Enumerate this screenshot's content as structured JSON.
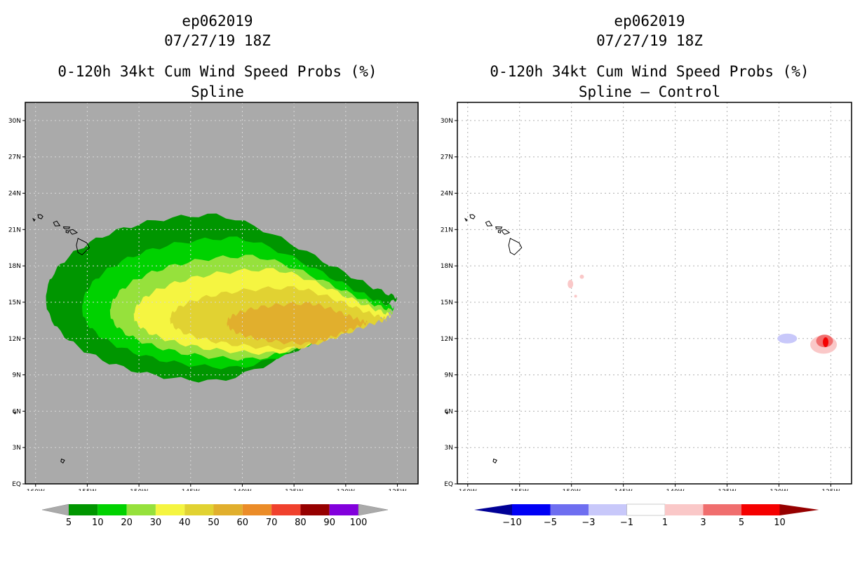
{
  "chart_data": [
    {
      "type": "heatmap",
      "storm_id": "ep062019",
      "date": "07/27/19 18Z",
      "title": "0-120h 34kt Cum Wind Speed Probs (%)",
      "subtitle": "Spline",
      "lon_range": [
        -161,
        -123
      ],
      "lat_range": [
        0,
        31.5
      ],
      "x_ticks": [
        "160W",
        "155W",
        "150W",
        "145W",
        "140W",
        "135W",
        "130W",
        "125W"
      ],
      "y_ticks": [
        "EQ",
        "3N",
        "6N",
        "9N",
        "12N",
        "15N",
        "18N",
        "21N",
        "24N",
        "27N",
        "30N"
      ],
      "colorbar": {
        "labels": [
          "5",
          "10",
          "20",
          "30",
          "40",
          "50",
          "60",
          "70",
          "80",
          "90",
          "100"
        ],
        "colors": [
          "#009600",
          "#00d200",
          "#96e13c",
          "#f5f541",
          "#e1d232",
          "#e1af2d",
          "#eb8c28",
          "#f0412d",
          "#960000",
          "#8200dc"
        ]
      },
      "contours": [
        {
          "level": "5",
          "color": "#009600",
          "center": [
            -142.5,
            15.3
          ],
          "west": -159,
          "east": -125,
          "north": 22.2,
          "south": 8.5
        },
        {
          "level": "10",
          "color": "#00d200",
          "center": [
            -140.5,
            14.5
          ],
          "west": -155.5,
          "east": -125.3,
          "north": 20.3,
          "south": 9.6
        },
        {
          "level": "20",
          "color": "#96e13c",
          "center": [
            -139,
            14.2
          ],
          "west": -152.8,
          "east": -125.4,
          "north": 18.8,
          "south": 10.3
        },
        {
          "level": "30",
          "color": "#f5f541",
          "center": [
            -137,
            13.9
          ],
          "west": -150.5,
          "east": -125.6,
          "north": 17.7,
          "south": 10.8
        },
        {
          "level": "40",
          "color": "#e1d232",
          "center": [
            -135,
            13.6
          ],
          "west": -147,
          "east": -126,
          "north": 16.2,
          "south": 11.2
        },
        {
          "level": "50",
          "color": "#e1af2d",
          "center": [
            -133.5,
            13.3
          ],
          "west": -141.5,
          "east": -127.8,
          "north": 14.9,
          "south": 11.6
        }
      ]
    },
    {
      "type": "heatmap",
      "storm_id": "ep062019",
      "date": "07/27/19 18Z",
      "title": "0-120h 34kt Cum Wind Speed Probs (%)",
      "subtitle": "Spline – Control",
      "lon_range": [
        -161,
        -123
      ],
      "lat_range": [
        0,
        31.5
      ],
      "x_ticks": [
        "160W",
        "155W",
        "150W",
        "145W",
        "140W",
        "135W",
        "130W",
        "125W"
      ],
      "y_ticks": [
        "EQ",
        "3N",
        "6N",
        "9N",
        "12N",
        "15N",
        "18N",
        "21N",
        "24N",
        "27N",
        "30N"
      ],
      "colorbar": {
        "labels": [
          "−10",
          "−5",
          "−3",
          "−1",
          "1",
          "3",
          "5",
          "10"
        ],
        "colors": [
          "#000096",
          "#0000f5",
          "#6e6ef0",
          "#c8c8fa",
          "#ffffff",
          "#fac8c8",
          "#f06e6e",
          "#f50000",
          "#960000"
        ]
      },
      "blobs": [
        {
          "sign": "positive",
          "level": "1",
          "color": "#fac8c8",
          "lon": -150.1,
          "lat": 16.5
        },
        {
          "sign": "positive",
          "level": "1",
          "color": "#fac8c8",
          "lon": -149.0,
          "lat": 17.1
        },
        {
          "sign": "positive",
          "level": "1",
          "color": "#fac8c8",
          "lon": -149.6,
          "lat": 15.5
        },
        {
          "sign": "negative",
          "level": "-1",
          "color": "#c8c8fa",
          "lon": -129.2,
          "lat": 12.0
        },
        {
          "sign": "positive",
          "level": "1",
          "color": "#fac8c8",
          "lon": -125.7,
          "lat": 11.5
        },
        {
          "sign": "positive",
          "level": "3",
          "color": "#f06e6e",
          "lon": -125.6,
          "lat": 11.8
        },
        {
          "sign": "positive",
          "level": "5",
          "color": "#f50000",
          "lon": -125.5,
          "lat": 11.7
        }
      ]
    }
  ]
}
